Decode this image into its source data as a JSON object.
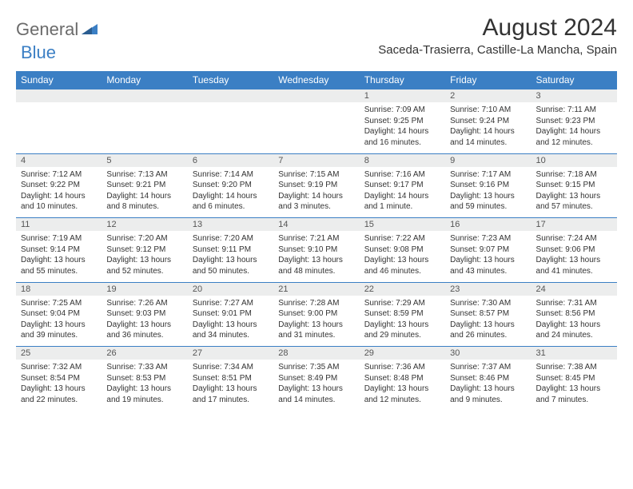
{
  "brand": {
    "part1": "General",
    "part2": "Blue"
  },
  "title": "August 2024",
  "location": "Saceda-Trasierra, Castille-La Mancha, Spain",
  "colors": {
    "header_bg": "#3b7fc4",
    "header_text": "#ffffff",
    "daynum_bg": "#eceded",
    "border": "#3b7fc4",
    "text": "#333333",
    "logo_gray": "#6b6b6b",
    "logo_blue": "#3b7fc4"
  },
  "dayNames": [
    "Sunday",
    "Monday",
    "Tuesday",
    "Wednesday",
    "Thursday",
    "Friday",
    "Saturday"
  ],
  "weeks": [
    [
      null,
      null,
      null,
      null,
      {
        "n": "1",
        "sr": "7:09 AM",
        "ss": "9:25 PM",
        "dl": "14 hours and 16 minutes."
      },
      {
        "n": "2",
        "sr": "7:10 AM",
        "ss": "9:24 PM",
        "dl": "14 hours and 14 minutes."
      },
      {
        "n": "3",
        "sr": "7:11 AM",
        "ss": "9:23 PM",
        "dl": "14 hours and 12 minutes."
      }
    ],
    [
      {
        "n": "4",
        "sr": "7:12 AM",
        "ss": "9:22 PM",
        "dl": "14 hours and 10 minutes."
      },
      {
        "n": "5",
        "sr": "7:13 AM",
        "ss": "9:21 PM",
        "dl": "14 hours and 8 minutes."
      },
      {
        "n": "6",
        "sr": "7:14 AM",
        "ss": "9:20 PM",
        "dl": "14 hours and 6 minutes."
      },
      {
        "n": "7",
        "sr": "7:15 AM",
        "ss": "9:19 PM",
        "dl": "14 hours and 3 minutes."
      },
      {
        "n": "8",
        "sr": "7:16 AM",
        "ss": "9:17 PM",
        "dl": "14 hours and 1 minute."
      },
      {
        "n": "9",
        "sr": "7:17 AM",
        "ss": "9:16 PM",
        "dl": "13 hours and 59 minutes."
      },
      {
        "n": "10",
        "sr": "7:18 AM",
        "ss": "9:15 PM",
        "dl": "13 hours and 57 minutes."
      }
    ],
    [
      {
        "n": "11",
        "sr": "7:19 AM",
        "ss": "9:14 PM",
        "dl": "13 hours and 55 minutes."
      },
      {
        "n": "12",
        "sr": "7:20 AM",
        "ss": "9:12 PM",
        "dl": "13 hours and 52 minutes."
      },
      {
        "n": "13",
        "sr": "7:20 AM",
        "ss": "9:11 PM",
        "dl": "13 hours and 50 minutes."
      },
      {
        "n": "14",
        "sr": "7:21 AM",
        "ss": "9:10 PM",
        "dl": "13 hours and 48 minutes."
      },
      {
        "n": "15",
        "sr": "7:22 AM",
        "ss": "9:08 PM",
        "dl": "13 hours and 46 minutes."
      },
      {
        "n": "16",
        "sr": "7:23 AM",
        "ss": "9:07 PM",
        "dl": "13 hours and 43 minutes."
      },
      {
        "n": "17",
        "sr": "7:24 AM",
        "ss": "9:06 PM",
        "dl": "13 hours and 41 minutes."
      }
    ],
    [
      {
        "n": "18",
        "sr": "7:25 AM",
        "ss": "9:04 PM",
        "dl": "13 hours and 39 minutes."
      },
      {
        "n": "19",
        "sr": "7:26 AM",
        "ss": "9:03 PM",
        "dl": "13 hours and 36 minutes."
      },
      {
        "n": "20",
        "sr": "7:27 AM",
        "ss": "9:01 PM",
        "dl": "13 hours and 34 minutes."
      },
      {
        "n": "21",
        "sr": "7:28 AM",
        "ss": "9:00 PM",
        "dl": "13 hours and 31 minutes."
      },
      {
        "n": "22",
        "sr": "7:29 AM",
        "ss": "8:59 PM",
        "dl": "13 hours and 29 minutes."
      },
      {
        "n": "23",
        "sr": "7:30 AM",
        "ss": "8:57 PM",
        "dl": "13 hours and 26 minutes."
      },
      {
        "n": "24",
        "sr": "7:31 AM",
        "ss": "8:56 PM",
        "dl": "13 hours and 24 minutes."
      }
    ],
    [
      {
        "n": "25",
        "sr": "7:32 AM",
        "ss": "8:54 PM",
        "dl": "13 hours and 22 minutes."
      },
      {
        "n": "26",
        "sr": "7:33 AM",
        "ss": "8:53 PM",
        "dl": "13 hours and 19 minutes."
      },
      {
        "n": "27",
        "sr": "7:34 AM",
        "ss": "8:51 PM",
        "dl": "13 hours and 17 minutes."
      },
      {
        "n": "28",
        "sr": "7:35 AM",
        "ss": "8:49 PM",
        "dl": "13 hours and 14 minutes."
      },
      {
        "n": "29",
        "sr": "7:36 AM",
        "ss": "8:48 PM",
        "dl": "13 hours and 12 minutes."
      },
      {
        "n": "30",
        "sr": "7:37 AM",
        "ss": "8:46 PM",
        "dl": "13 hours and 9 minutes."
      },
      {
        "n": "31",
        "sr": "7:38 AM",
        "ss": "8:45 PM",
        "dl": "13 hours and 7 minutes."
      }
    ]
  ],
  "labels": {
    "sunrise": "Sunrise: ",
    "sunset": "Sunset: ",
    "daylight": "Daylight: "
  }
}
